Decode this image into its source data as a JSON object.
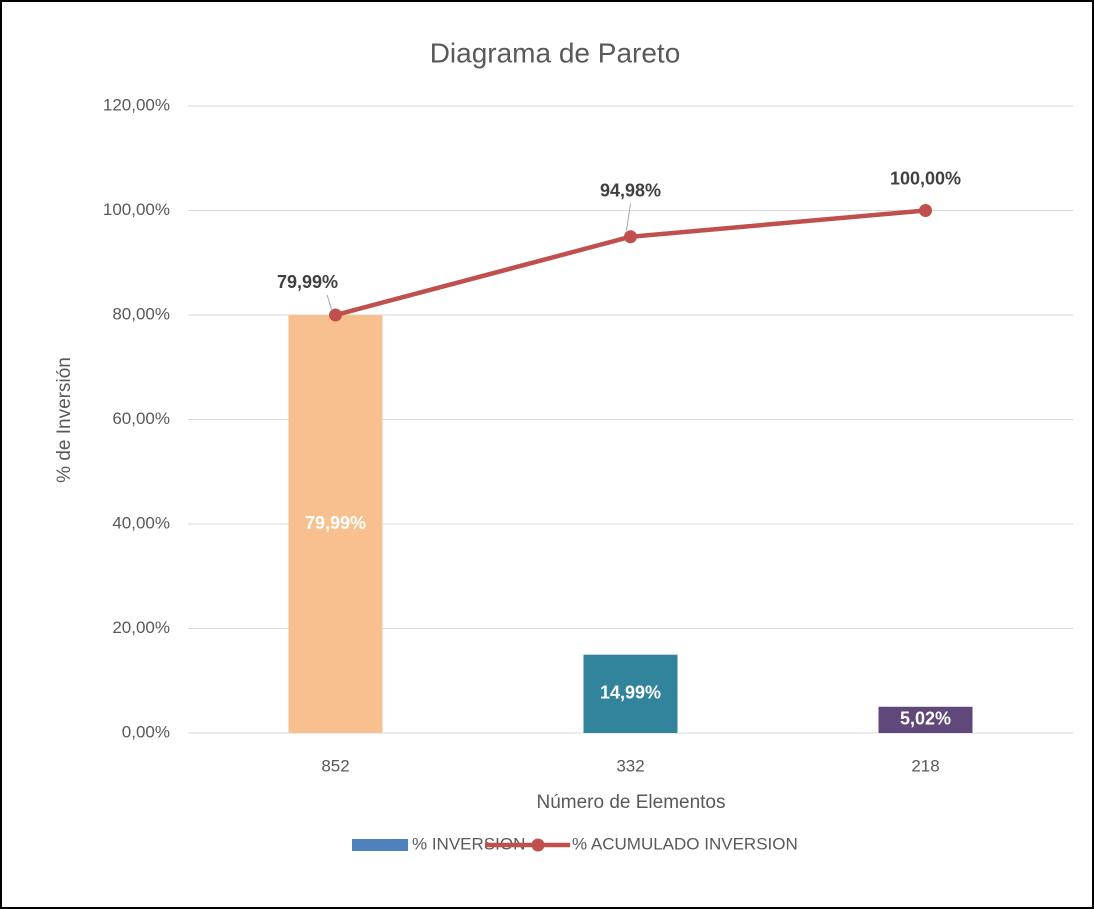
{
  "chart_data": {
    "type": "bar",
    "title": "Diagrama de Pareto",
    "xlabel": "Número de Elementos",
    "ylabel": "% de Inversión",
    "categories": [
      "852",
      "332",
      "218"
    ],
    "series": [
      {
        "name": "% INVERSION",
        "type": "bar",
        "color": "#4f81bd",
        "colors": [
          "#f9c08f",
          "#31849b",
          "#60497a"
        ],
        "values": [
          79.99,
          14.99,
          5.02
        ],
        "value_labels": [
          "79,99%",
          "14,99%",
          "5,02%"
        ]
      },
      {
        "name": "% ACUMULADO INVERSION",
        "type": "line",
        "color": "#c0504d",
        "values": [
          79.99,
          94.98,
          100.0
        ],
        "value_labels": [
          "79,99%",
          "94,98%",
          "100,00%"
        ]
      }
    ],
    "ylim": [
      0,
      120
    ],
    "yticks": [
      {
        "value": 0,
        "label": "0,00%"
      },
      {
        "value": 20,
        "label": "20,00%"
      },
      {
        "value": 40,
        "label": "40,00%"
      },
      {
        "value": 60,
        "label": "60,00%"
      },
      {
        "value": 80,
        "label": "80,00%"
      },
      {
        "value": 100,
        "label": "100,00%"
      },
      {
        "value": 120,
        "label": "120,00%"
      }
    ],
    "grid": true,
    "legend": "bottom"
  }
}
